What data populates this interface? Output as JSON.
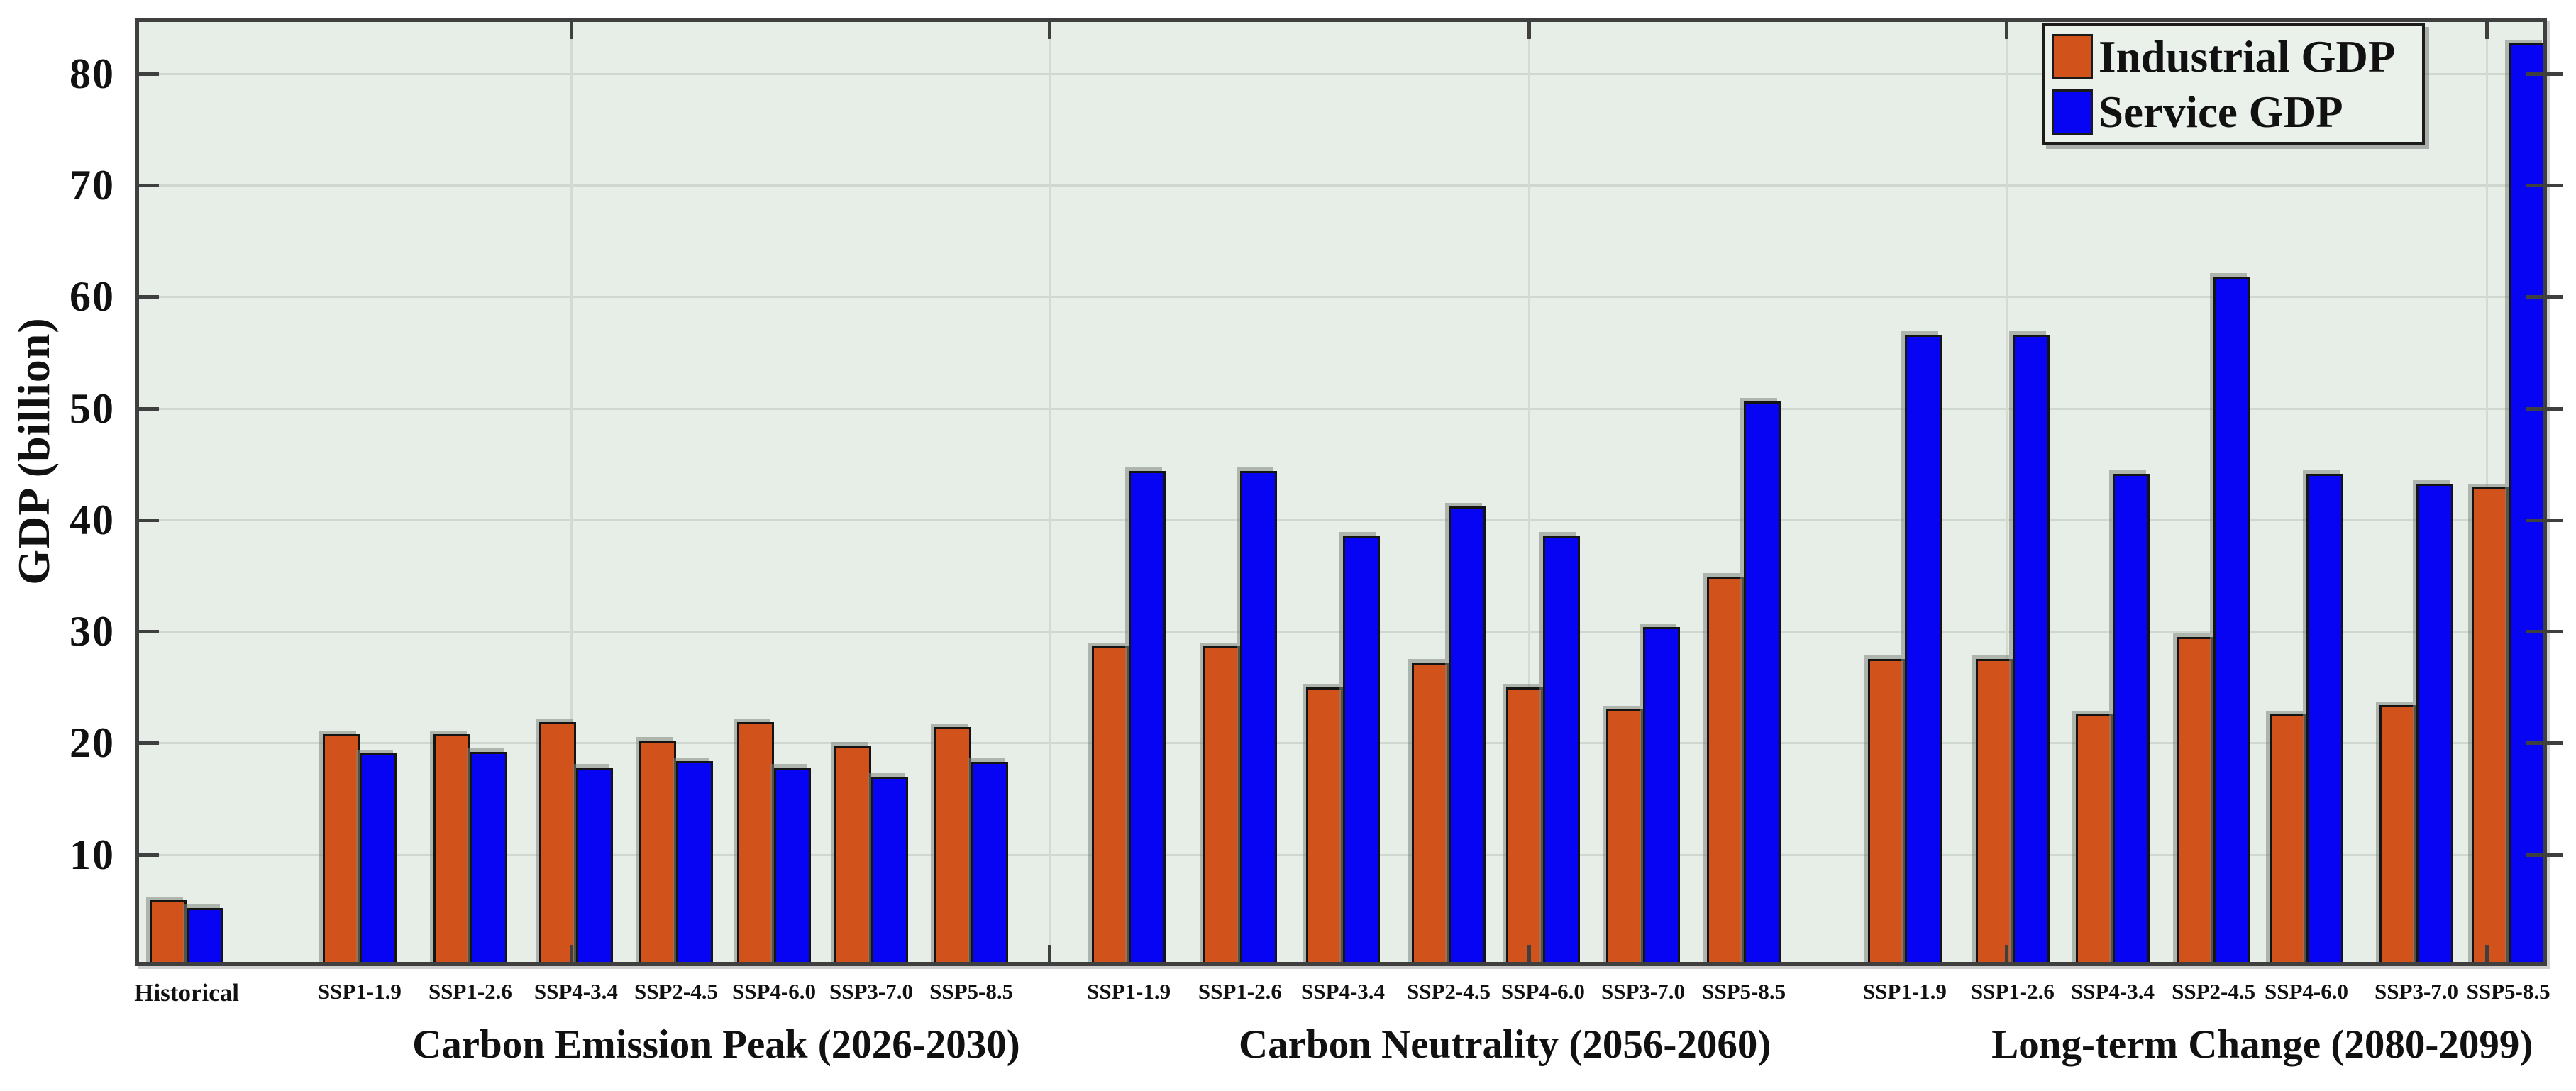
{
  "figure": {
    "kind": "grouped bar chart",
    "background_color": "#FFFFFF",
    "plot_background_color": "#E7EDE7",
    "spine_color": "#3F3F3F",
    "gridline_color": "#CFD8CF"
  },
  "chart_data": {
    "type": "bar",
    "title": "",
    "xlabel": "",
    "ylabel": "GDP (billion)",
    "ylim": [
      0,
      85
    ],
    "yticks": [
      10,
      20,
      30,
      40,
      50,
      60,
      70,
      80
    ],
    "grid": "on",
    "legend_position": "top-right",
    "legend": [
      "Industrial GDP",
      "Service GDP"
    ],
    "colors": {
      "industrial": "#D2521C",
      "service": "#0604F2"
    },
    "groups": [
      {
        "title": "",
        "categories": [
          "Historical"
        ],
        "series": [
          {
            "name": "Industrial GDP",
            "values": [
              5.9
            ]
          },
          {
            "name": "Service GDP",
            "values": [
              5.2
            ]
          }
        ]
      },
      {
        "title": "Carbon Emission Peak (2026-2030)",
        "categories": [
          "SSP1-1.9",
          "SSP1-2.6",
          "SSP4-3.4",
          "SSP2-4.5",
          "SSP4-6.0",
          "SSP3-7.0",
          "SSP5-8.5"
        ],
        "series": [
          {
            "name": "Industrial GDP",
            "values": [
              20.8,
              20.8,
              21.9,
              20.2,
              21.9,
              19.8,
              21.4
            ]
          },
          {
            "name": "Service GDP",
            "values": [
              19.1,
              19.2,
              17.8,
              18.4,
              17.8,
              17.0,
              18.3
            ]
          }
        ]
      },
      {
        "title": "Carbon Neutrality (2056-2060)",
        "categories": [
          "SSP1-1.9",
          "SSP1-2.6",
          "SSP4-3.4",
          "SSP2-4.5",
          "SSP4-6.0",
          "SSP3-7.0",
          "SSP5-8.5"
        ],
        "series": [
          {
            "name": "Industrial GDP",
            "values": [
              28.7,
              28.7,
              25.0,
              27.2,
              25.0,
              23.0,
              34.9
            ]
          },
          {
            "name": "Service GDP",
            "values": [
              44.4,
              44.4,
              38.6,
              41.2,
              38.6,
              30.4,
              50.6
            ]
          }
        ]
      },
      {
        "title": "Long-term Change (2080-2099)",
        "categories": [
          "SSP1-1.9",
          "SSP1-2.6",
          "SSP4-3.4",
          "SSP2-4.5",
          "SSP4-6.0",
          "SSP3-7.0",
          "SSP5-8.5"
        ],
        "series": [
          {
            "name": "Industrial GDP",
            "values": [
              27.5,
              27.5,
              22.6,
              29.5,
              22.6,
              23.4,
              42.9
            ]
          },
          {
            "name": "Service GDP",
            "values": [
              56.6,
              56.6,
              44.1,
              61.8,
              44.1,
              43.2,
              82.7
            ]
          }
        ]
      }
    ]
  }
}
